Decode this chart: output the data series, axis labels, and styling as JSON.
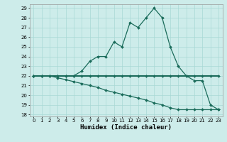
{
  "xlabel": "Humidex (Indice chaleur)",
  "x": [
    0,
    1,
    2,
    3,
    4,
    5,
    6,
    7,
    8,
    9,
    10,
    11,
    12,
    13,
    14,
    15,
    16,
    17,
    18,
    19,
    20,
    21,
    22,
    23
  ],
  "series1": [
    22,
    22,
    22,
    22,
    22,
    22,
    22.5,
    23.5,
    24,
    24,
    25.5,
    25,
    27.5,
    27,
    28,
    29,
    28,
    25,
    23,
    22,
    21.5,
    21.5,
    19.0,
    18.5
  ],
  "series2": [
    22,
    22,
    22,
    22,
    22,
    22,
    22,
    22,
    22,
    22,
    22,
    22,
    22,
    22,
    22,
    22,
    22,
    22,
    22,
    22,
    22,
    22,
    22,
    22
  ],
  "series3": [
    22,
    22,
    22,
    21.8,
    21.6,
    21.4,
    21.2,
    21.0,
    20.8,
    20.5,
    20.3,
    20.1,
    19.9,
    19.7,
    19.5,
    19.2,
    19.0,
    18.7,
    18.5,
    18.5,
    18.5,
    18.5,
    18.5,
    18.5
  ],
  "ylim_min": 17.8,
  "ylim_max": 29.4,
  "xlim_min": -0.5,
  "xlim_max": 23.5,
  "yticks": [
    18,
    19,
    20,
    21,
    22,
    23,
    24,
    25,
    26,
    27,
    28,
    29
  ],
  "xticks": [
    0,
    1,
    2,
    3,
    4,
    5,
    6,
    7,
    8,
    9,
    10,
    11,
    12,
    13,
    14,
    15,
    16,
    17,
    18,
    19,
    20,
    21,
    22,
    23
  ],
  "line_color": "#1a6b5a",
  "bg_color": "#cdecea",
  "grid_color": "#a8d8d5",
  "tick_fontsize": 5,
  "xlabel_fontsize": 6.5,
  "lw1": 0.9,
  "lw2": 1.5,
  "lw3": 0.9,
  "ms": 2.0
}
